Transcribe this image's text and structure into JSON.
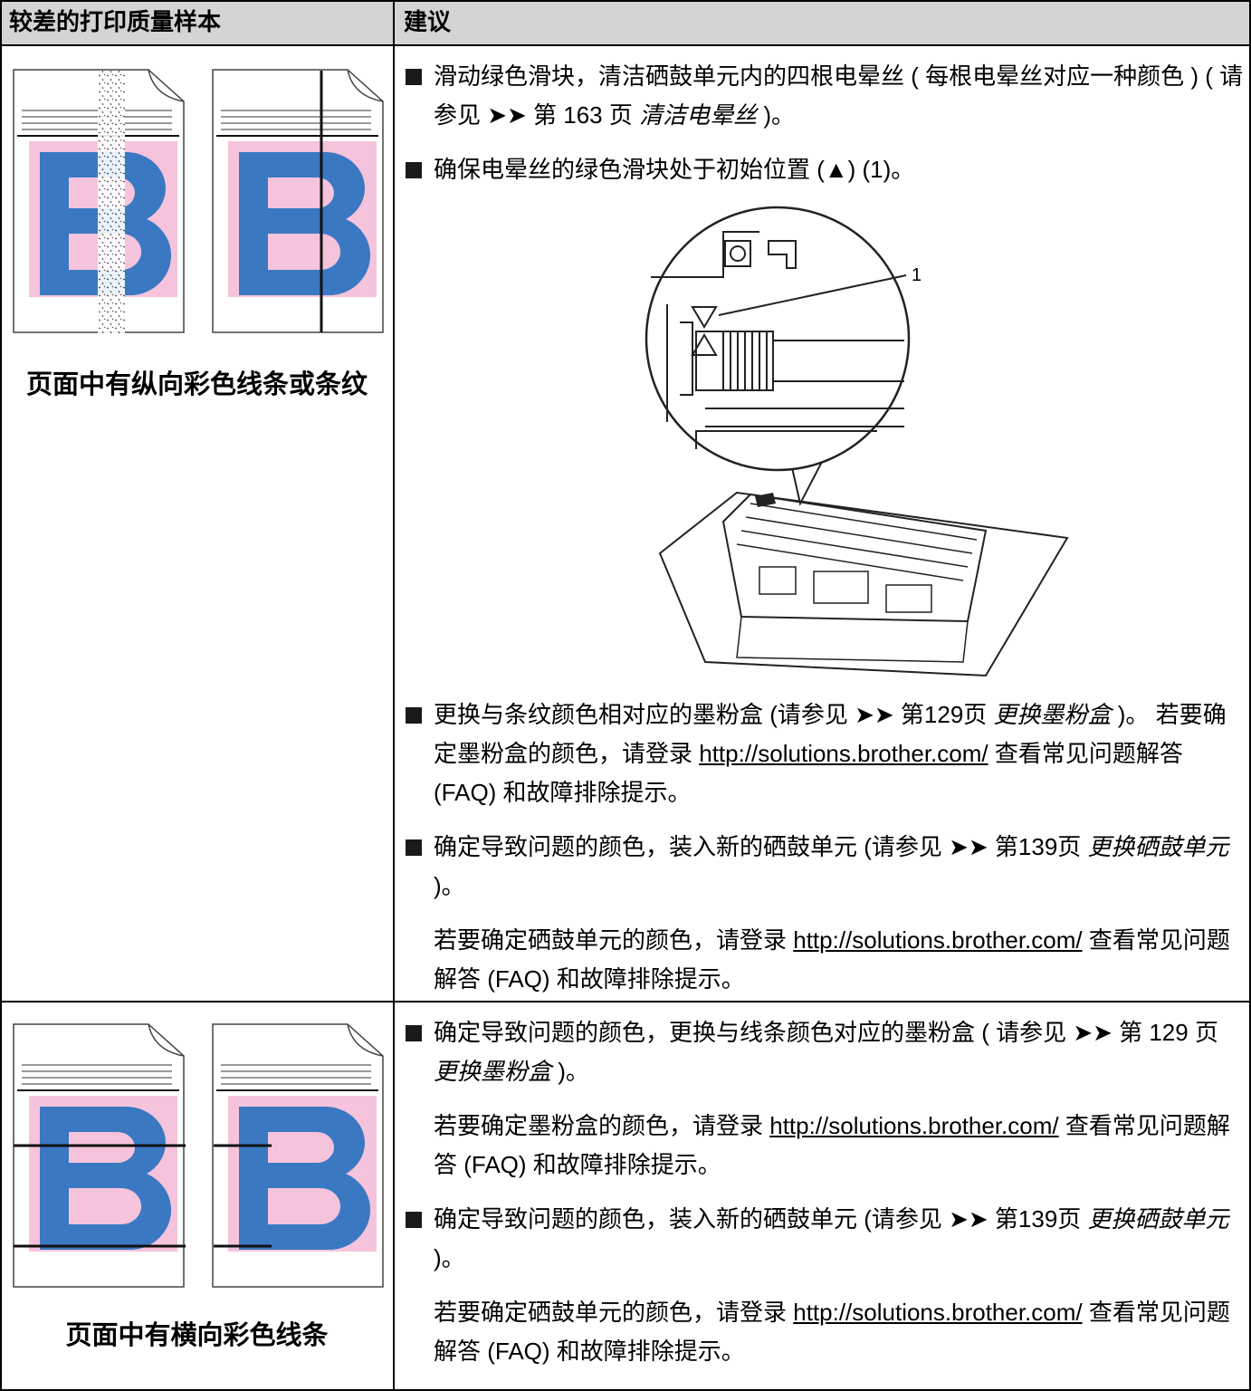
{
  "table": {
    "header": [
      "较差的打印质量样本",
      "建议"
    ],
    "rows": [
      {
        "caption": "页面中有纵向彩色线条或条纹",
        "callout": "1",
        "paragraphs": [
          [
            "滑动绿色滑块，清洁硒鼓单元内的四根电晕丝 ( 每根电晕丝对应一种颜色 ) ( 请参见 ➤➤ 第 163 页 ",
            "清洁电晕丝",
            " )。"
          ],
          [
            "确保电晕丝的绿色滑块处于初始位置 (▲) (1)。"
          ],
          [
            "更换与条纹颜色相对应的墨粉盒 (请参见 ➤➤ 第129页 ",
            "更换墨粉盒",
            " )。 若要确定墨粉盒的颜色，请登录 ",
            "http://solutions.brother.com/",
            " 查看常见问题解答 (FAQ) 和故障排除提示。"
          ],
          [
            "确定导致问题的颜色，装入新的硒鼓单元 (请参见 ➤➤ 第139页 ",
            "更换硒鼓单元",
            " )。"
          ],
          [
            "若要确定硒鼓单元的颜色，请登录 ",
            "http://solutions.brother.com/",
            " 查看常见问题解答 (FAQ) 和故障排除提示。"
          ]
        ]
      },
      {
        "caption": "页面中有横向彩色线条",
        "paragraphs": [
          [
            "确定导致问题的颜色，更换与线条颜色对应的墨粉盒 ( 请参见 ➤➤ 第 129 页 ",
            "更换墨粉盒",
            " )。"
          ],
          [
            "若要确定墨粉盒的颜色，请登录 ",
            "http://solutions.brother.com/",
            " 查看常见问题解答 (FAQ) 和故障排除提示。"
          ],
          [
            "确定导致问题的颜色，装入新的硒鼓单元 (请参见 ➤➤ 第139页 ",
            "更换硒鼓单元",
            " )。"
          ],
          [
            "若要确定硒鼓单元的颜色，请登录 ",
            "http://solutions.brother.com/",
            " 查看常见问题解答 (FAQ) 和故障排除提示。"
          ]
        ]
      }
    ]
  }
}
